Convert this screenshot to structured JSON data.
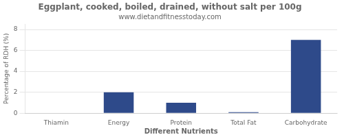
{
  "chart_data": {
    "type": "bar",
    "title": "Eggplant, cooked, boiled, drained, without salt per 100g",
    "subtitle": "www.dietandfitnesstoday.com",
    "categories": [
      "Thiamin",
      "Energy",
      "Protein",
      "Total Fat",
      "Carbohydrate"
    ],
    "values": [
      0.0,
      2.0,
      1.0,
      0.1,
      7.0
    ],
    "color": "#2e4a8a",
    "xlabel": "Different Nutrients",
    "ylabel": "Percentage of RDH (%)",
    "ylim": [
      0,
      8.5
    ],
    "yticks": [
      0,
      2,
      4,
      6,
      8
    ],
    "grid": true
  }
}
